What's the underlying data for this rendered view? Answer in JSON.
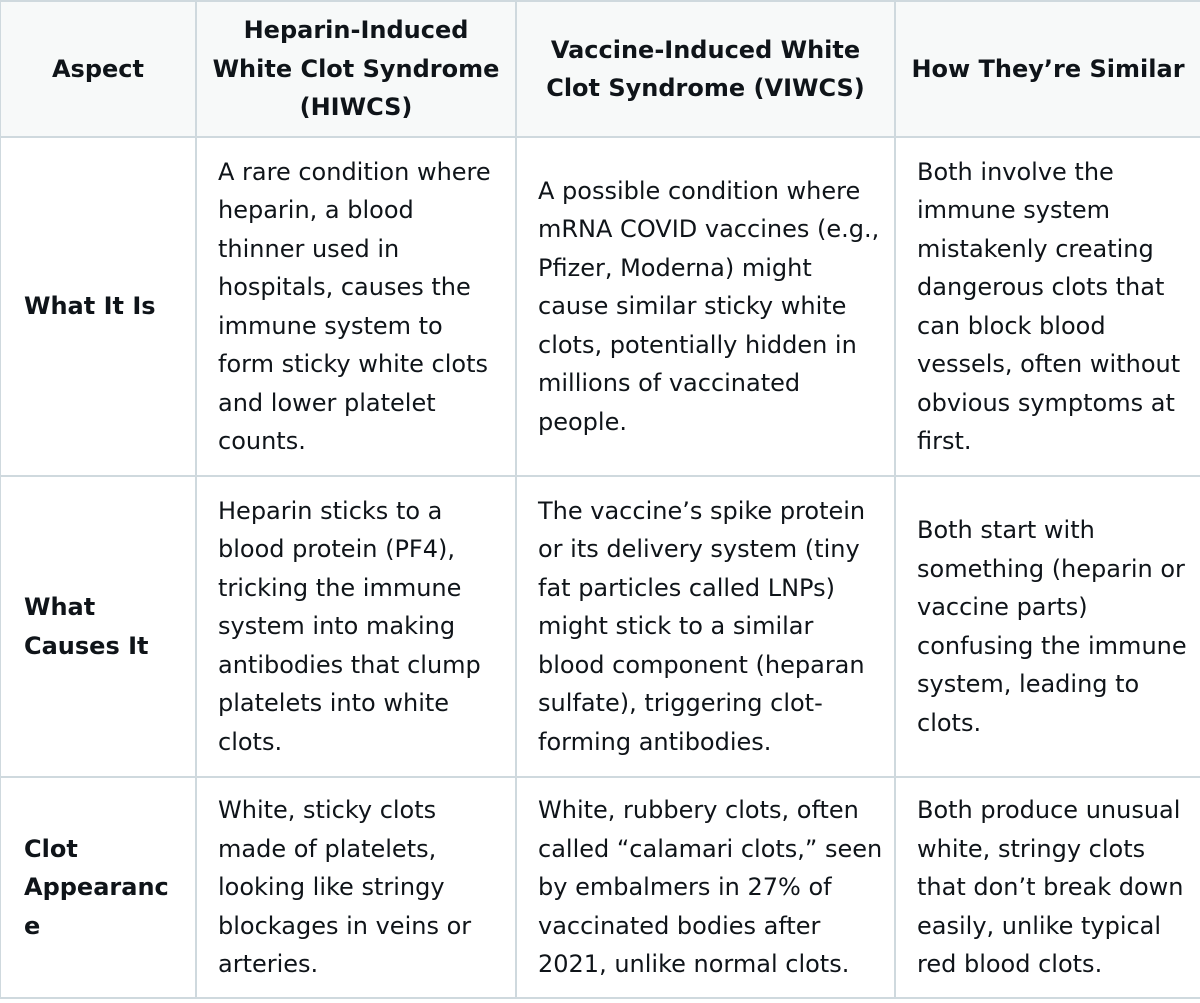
{
  "table": {
    "headers": [
      "Aspect",
      "Heparin-Induced White Clot Syndrome (HIWCS)",
      "Vaccine-Induced White Clot Syndrome (VIWCS)",
      "How They’re Similar"
    ],
    "rows": [
      {
        "aspect": "What It Is",
        "hiwcs": "A rare condition where heparin, a blood thinner used in hospitals, causes the immune system to form sticky white clots and lower platelet counts.",
        "viwcs": "A possible condition where mRNA COVID vaccines (e.g., Pfizer, Moderna) might cause similar sticky white clots, potentially hidden in millions of vaccinated people.",
        "similar": "Both involve the immune system mistakenly creating dangerous clots that can block blood vessels, often without obvious symptoms at first."
      },
      {
        "aspect": "What Causes It",
        "hiwcs": "Heparin sticks to a blood protein (PF4), tricking the immune system into making antibodies that clump platelets into white clots.",
        "viwcs": "The vaccine’s spike protein or its delivery system (tiny fat particles called LNPs) might stick to a similar blood component (heparan sulfate), triggering clot-forming antibodies.",
        "similar": "Both start with something (heparin or vaccine parts) confusing the immune system, leading to clots."
      },
      {
        "aspect": "Clot Appearance",
        "hiwcs": "White, sticky clots made of platelets, looking like stringy blockages in veins or arteries.",
        "viwcs": "White, rubbery clots, often called “calamari clots,” seen by embalmers in 27% of vaccinated bodies after 2021, unlike normal clots.",
        "similar": "Both produce unusual white, stringy clots that don’t break down easily, unlike typical red blood clots."
      }
    ]
  }
}
